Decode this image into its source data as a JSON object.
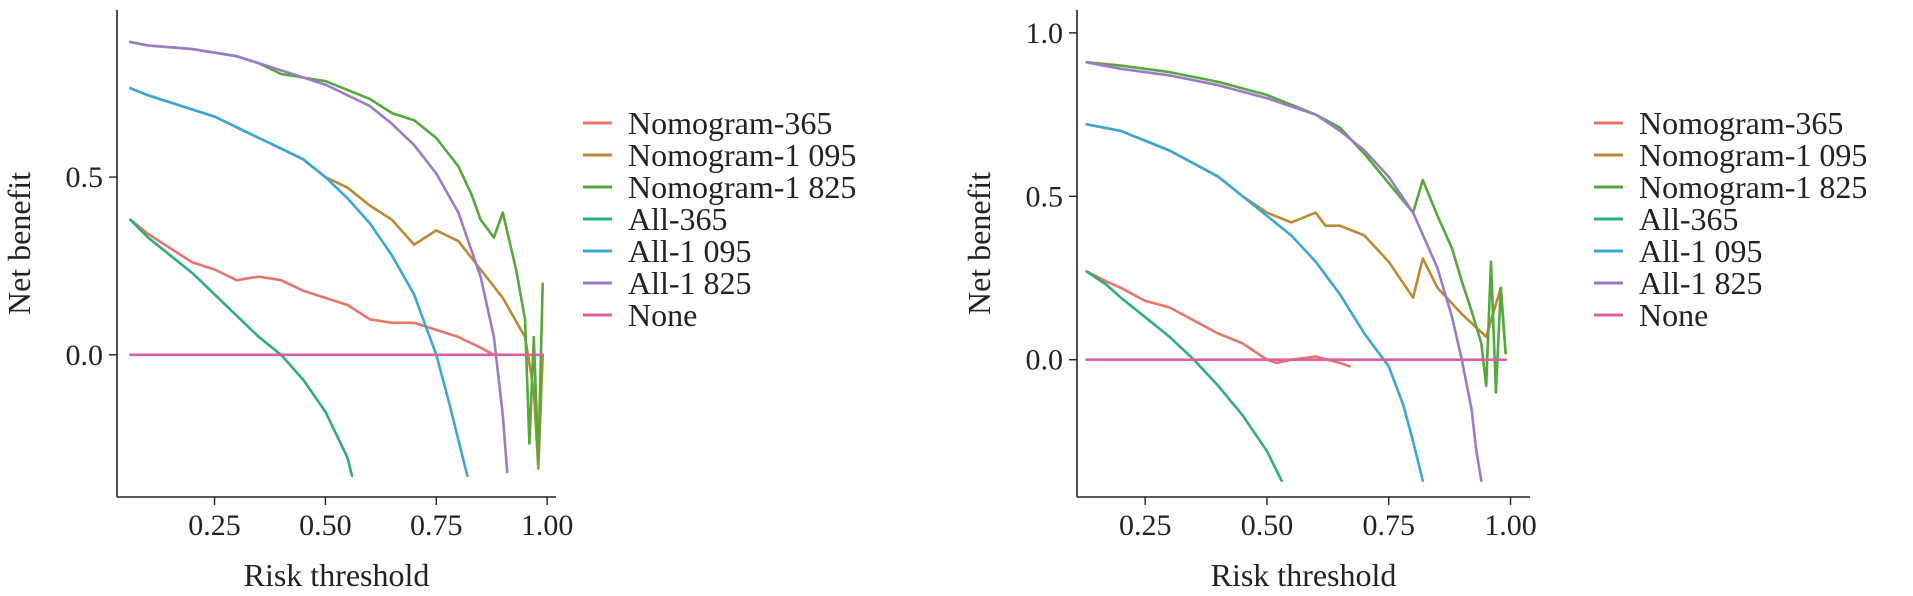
{
  "legend_labels": [
    "Nomogram-365",
    "Nomogram-1 095",
    "Nomogram-1 825",
    "All-365",
    "All-1 095",
    "All-1 825",
    "None"
  ],
  "colors": {
    "Nomogram-365": "#E8756B",
    "Nomogram-1 095": "#BB8A33",
    "Nomogram-1 825": "#55A83A",
    "All-365": "#2EAD7D",
    "All-1 095": "#3AA7D6",
    "All-1 825": "#9B7AC6",
    "None": "#D9609E"
  },
  "chart_data": [
    {
      "type": "line",
      "xlabel": "Risk threshold",
      "ylabel": "Net benefit",
      "xlim": [
        0.03,
        1.02
      ],
      "ylim": [
        -0.4,
        0.97
      ],
      "xticks": [
        0.25,
        0.5,
        0.75,
        1.0
      ],
      "xtick_labels": [
        "0.25",
        "0.50",
        "0.75",
        "1.00"
      ],
      "yticks": [
        0.0,
        0.5
      ],
      "ytick_labels": [
        "0.0",
        "0.5"
      ],
      "grid": false,
      "legend_position": "right",
      "series": [
        {
          "name": "Nomogram-365",
          "x": [
            0.06,
            0.1,
            0.15,
            0.2,
            0.25,
            0.3,
            0.35,
            0.4,
            0.45,
            0.5,
            0.55,
            0.6,
            0.65,
            0.7,
            0.75,
            0.8,
            0.85,
            0.88
          ],
          "y": [
            0.38,
            0.34,
            0.3,
            0.26,
            0.24,
            0.21,
            0.22,
            0.21,
            0.18,
            0.16,
            0.14,
            0.1,
            0.09,
            0.09,
            0.07,
            0.05,
            0.02,
            0.0
          ]
        },
        {
          "name": "Nomogram-1 095",
          "x": [
            0.06,
            0.1,
            0.15,
            0.2,
            0.25,
            0.3,
            0.35,
            0.4,
            0.45,
            0.5,
            0.55,
            0.6,
            0.65,
            0.7,
            0.75,
            0.8,
            0.85,
            0.9,
            0.95,
            0.97,
            0.98,
            0.99
          ],
          "y": [
            0.75,
            0.73,
            0.71,
            0.69,
            0.67,
            0.64,
            0.61,
            0.58,
            0.55,
            0.5,
            0.47,
            0.42,
            0.38,
            0.31,
            0.35,
            0.32,
            0.24,
            0.16,
            0.05,
            -0.1,
            -0.32,
            0.0
          ]
        },
        {
          "name": "Nomogram-1 825",
          "x": [
            0.06,
            0.1,
            0.2,
            0.3,
            0.35,
            0.4,
            0.5,
            0.6,
            0.65,
            0.7,
            0.75,
            0.8,
            0.83,
            0.85,
            0.88,
            0.9,
            0.93,
            0.95,
            0.96,
            0.97,
            0.98,
            0.99
          ],
          "y": [
            0.88,
            0.87,
            0.86,
            0.84,
            0.82,
            0.79,
            0.77,
            0.72,
            0.68,
            0.66,
            0.61,
            0.53,
            0.45,
            0.38,
            0.33,
            0.4,
            0.24,
            0.1,
            -0.25,
            0.05,
            -0.3,
            0.2
          ]
        },
        {
          "name": "All-365",
          "x": [
            0.06,
            0.1,
            0.15,
            0.2,
            0.25,
            0.3,
            0.35,
            0.4,
            0.45,
            0.5,
            0.55,
            0.56
          ],
          "y": [
            0.38,
            0.33,
            0.28,
            0.23,
            0.17,
            0.11,
            0.05,
            0.0,
            -0.07,
            -0.16,
            -0.29,
            -0.34
          ]
        },
        {
          "name": "All-1 095",
          "x": [
            0.06,
            0.1,
            0.15,
            0.2,
            0.25,
            0.3,
            0.35,
            0.4,
            0.45,
            0.5,
            0.55,
            0.6,
            0.65,
            0.7,
            0.75,
            0.78,
            0.8,
            0.82
          ],
          "y": [
            0.75,
            0.73,
            0.71,
            0.69,
            0.67,
            0.64,
            0.61,
            0.58,
            0.55,
            0.5,
            0.44,
            0.37,
            0.28,
            0.17,
            0.0,
            -0.14,
            -0.24,
            -0.34
          ]
        },
        {
          "name": "All-1 825",
          "x": [
            0.06,
            0.1,
            0.2,
            0.3,
            0.4,
            0.5,
            0.6,
            0.65,
            0.7,
            0.75,
            0.8,
            0.85,
            0.88,
            0.9,
            0.91
          ],
          "y": [
            0.88,
            0.87,
            0.86,
            0.84,
            0.8,
            0.76,
            0.7,
            0.65,
            0.59,
            0.51,
            0.4,
            0.22,
            0.05,
            -0.17,
            -0.33
          ]
        },
        {
          "name": "None",
          "x": [
            0.06,
            0.99
          ],
          "y": [
            0.0,
            0.0
          ]
        }
      ]
    },
    {
      "type": "line",
      "xlabel": "Risk threshold",
      "ylabel": "Net benefit",
      "xlim": [
        0.11,
        1.04
      ],
      "ylim": [
        -0.42,
        1.07
      ],
      "xticks": [
        0.25,
        0.5,
        0.75,
        1.0
      ],
      "xtick_labels": [
        "0.25",
        "0.50",
        "0.75",
        "1.00"
      ],
      "yticks": [
        0.0,
        0.5,
        1.0
      ],
      "ytick_labels": [
        "0.0",
        "0.5",
        "1.0"
      ],
      "grid": false,
      "legend_position": "right",
      "series": [
        {
          "name": "Nomogram-365",
          "x": [
            0.13,
            0.17,
            0.2,
            0.25,
            0.3,
            0.35,
            0.4,
            0.45,
            0.5,
            0.52,
            0.55,
            0.6,
            0.65,
            0.67
          ],
          "y": [
            0.27,
            0.24,
            0.22,
            0.18,
            0.16,
            0.12,
            0.08,
            0.05,
            0.0,
            -0.01,
            0.0,
            0.01,
            -0.01,
            -0.02
          ]
        },
        {
          "name": "Nomogram-1 095",
          "x": [
            0.13,
            0.2,
            0.3,
            0.4,
            0.45,
            0.5,
            0.55,
            0.6,
            0.62,
            0.65,
            0.7,
            0.75,
            0.8,
            0.82,
            0.85,
            0.9,
            0.95,
            0.98,
            0.99
          ],
          "y": [
            0.72,
            0.7,
            0.64,
            0.56,
            0.5,
            0.45,
            0.42,
            0.45,
            0.41,
            0.41,
            0.38,
            0.3,
            0.19,
            0.31,
            0.22,
            0.14,
            0.07,
            0.22,
            0.02
          ]
        },
        {
          "name": "Nomogram-1 825",
          "x": [
            0.13,
            0.2,
            0.3,
            0.4,
            0.5,
            0.6,
            0.65,
            0.7,
            0.75,
            0.8,
            0.82,
            0.85,
            0.88,
            0.9,
            0.92,
            0.94,
            0.95,
            0.96,
            0.97,
            0.98,
            0.99
          ],
          "y": [
            0.91,
            0.9,
            0.88,
            0.85,
            0.81,
            0.75,
            0.71,
            0.63,
            0.54,
            0.45,
            0.55,
            0.44,
            0.34,
            0.24,
            0.15,
            0.05,
            -0.08,
            0.3,
            -0.1,
            0.22,
            0.02
          ]
        },
        {
          "name": "All-365",
          "x": [
            0.13,
            0.17,
            0.2,
            0.25,
            0.3,
            0.35,
            0.4,
            0.45,
            0.5,
            0.53
          ],
          "y": [
            0.27,
            0.23,
            0.19,
            0.13,
            0.07,
            0.0,
            -0.08,
            -0.17,
            -0.28,
            -0.37
          ]
        },
        {
          "name": "All-1 095",
          "x": [
            0.13,
            0.2,
            0.3,
            0.4,
            0.45,
            0.5,
            0.55,
            0.6,
            0.65,
            0.7,
            0.75,
            0.78,
            0.8,
            0.82
          ],
          "y": [
            0.72,
            0.7,
            0.64,
            0.56,
            0.5,
            0.44,
            0.38,
            0.3,
            0.2,
            0.08,
            -0.02,
            -0.14,
            -0.25,
            -0.37
          ]
        },
        {
          "name": "All-1 825",
          "x": [
            0.13,
            0.2,
            0.3,
            0.4,
            0.5,
            0.6,
            0.65,
            0.7,
            0.75,
            0.8,
            0.85,
            0.88,
            0.9,
            0.92,
            0.93,
            0.94
          ],
          "y": [
            0.91,
            0.89,
            0.87,
            0.84,
            0.8,
            0.75,
            0.7,
            0.64,
            0.56,
            0.45,
            0.28,
            0.13,
            0.0,
            -0.15,
            -0.28,
            -0.37
          ]
        },
        {
          "name": "None",
          "x": [
            0.13,
            0.99
          ],
          "y": [
            0.0,
            0.0
          ]
        }
      ]
    }
  ]
}
